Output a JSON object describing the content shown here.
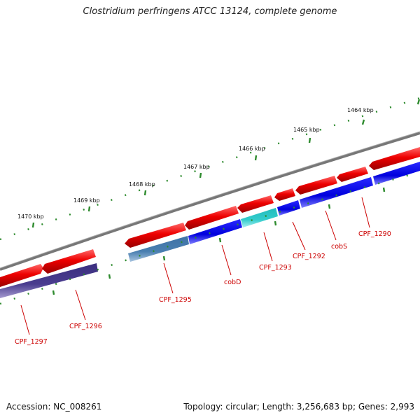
{
  "title": "Clostridium perfringens ATCC 13124, complete genome",
  "footer": {
    "accession": "Accession: NC_008261",
    "summary": "Topology: circular; Length: 3,256,683 bp; Genes: 2,993"
  },
  "scale_labels": [
    "1464 kbp",
    "1465 kbp",
    "1466 kbp",
    "1467 kbp",
    "1468 kbp",
    "1469 kbp",
    "1470 kbp"
  ],
  "gene_labels": [
    "CPF_1290",
    "cobS",
    "CPF_1292",
    "CPF_1293",
    "cobD",
    "CPF_1295",
    "CPF_1296",
    "CPF_1297"
  ],
  "colors": {
    "backbone": "#777777",
    "forward_genes": "#ee0000",
    "cds_blue": "#0000dd",
    "cds_cyan": "#33cccc",
    "cds_steel": "#4a7fb0",
    "cds_purple": "#4a3d8f",
    "tick_marks": "#2e8b2e",
    "gene_label": "#cc0000"
  }
}
